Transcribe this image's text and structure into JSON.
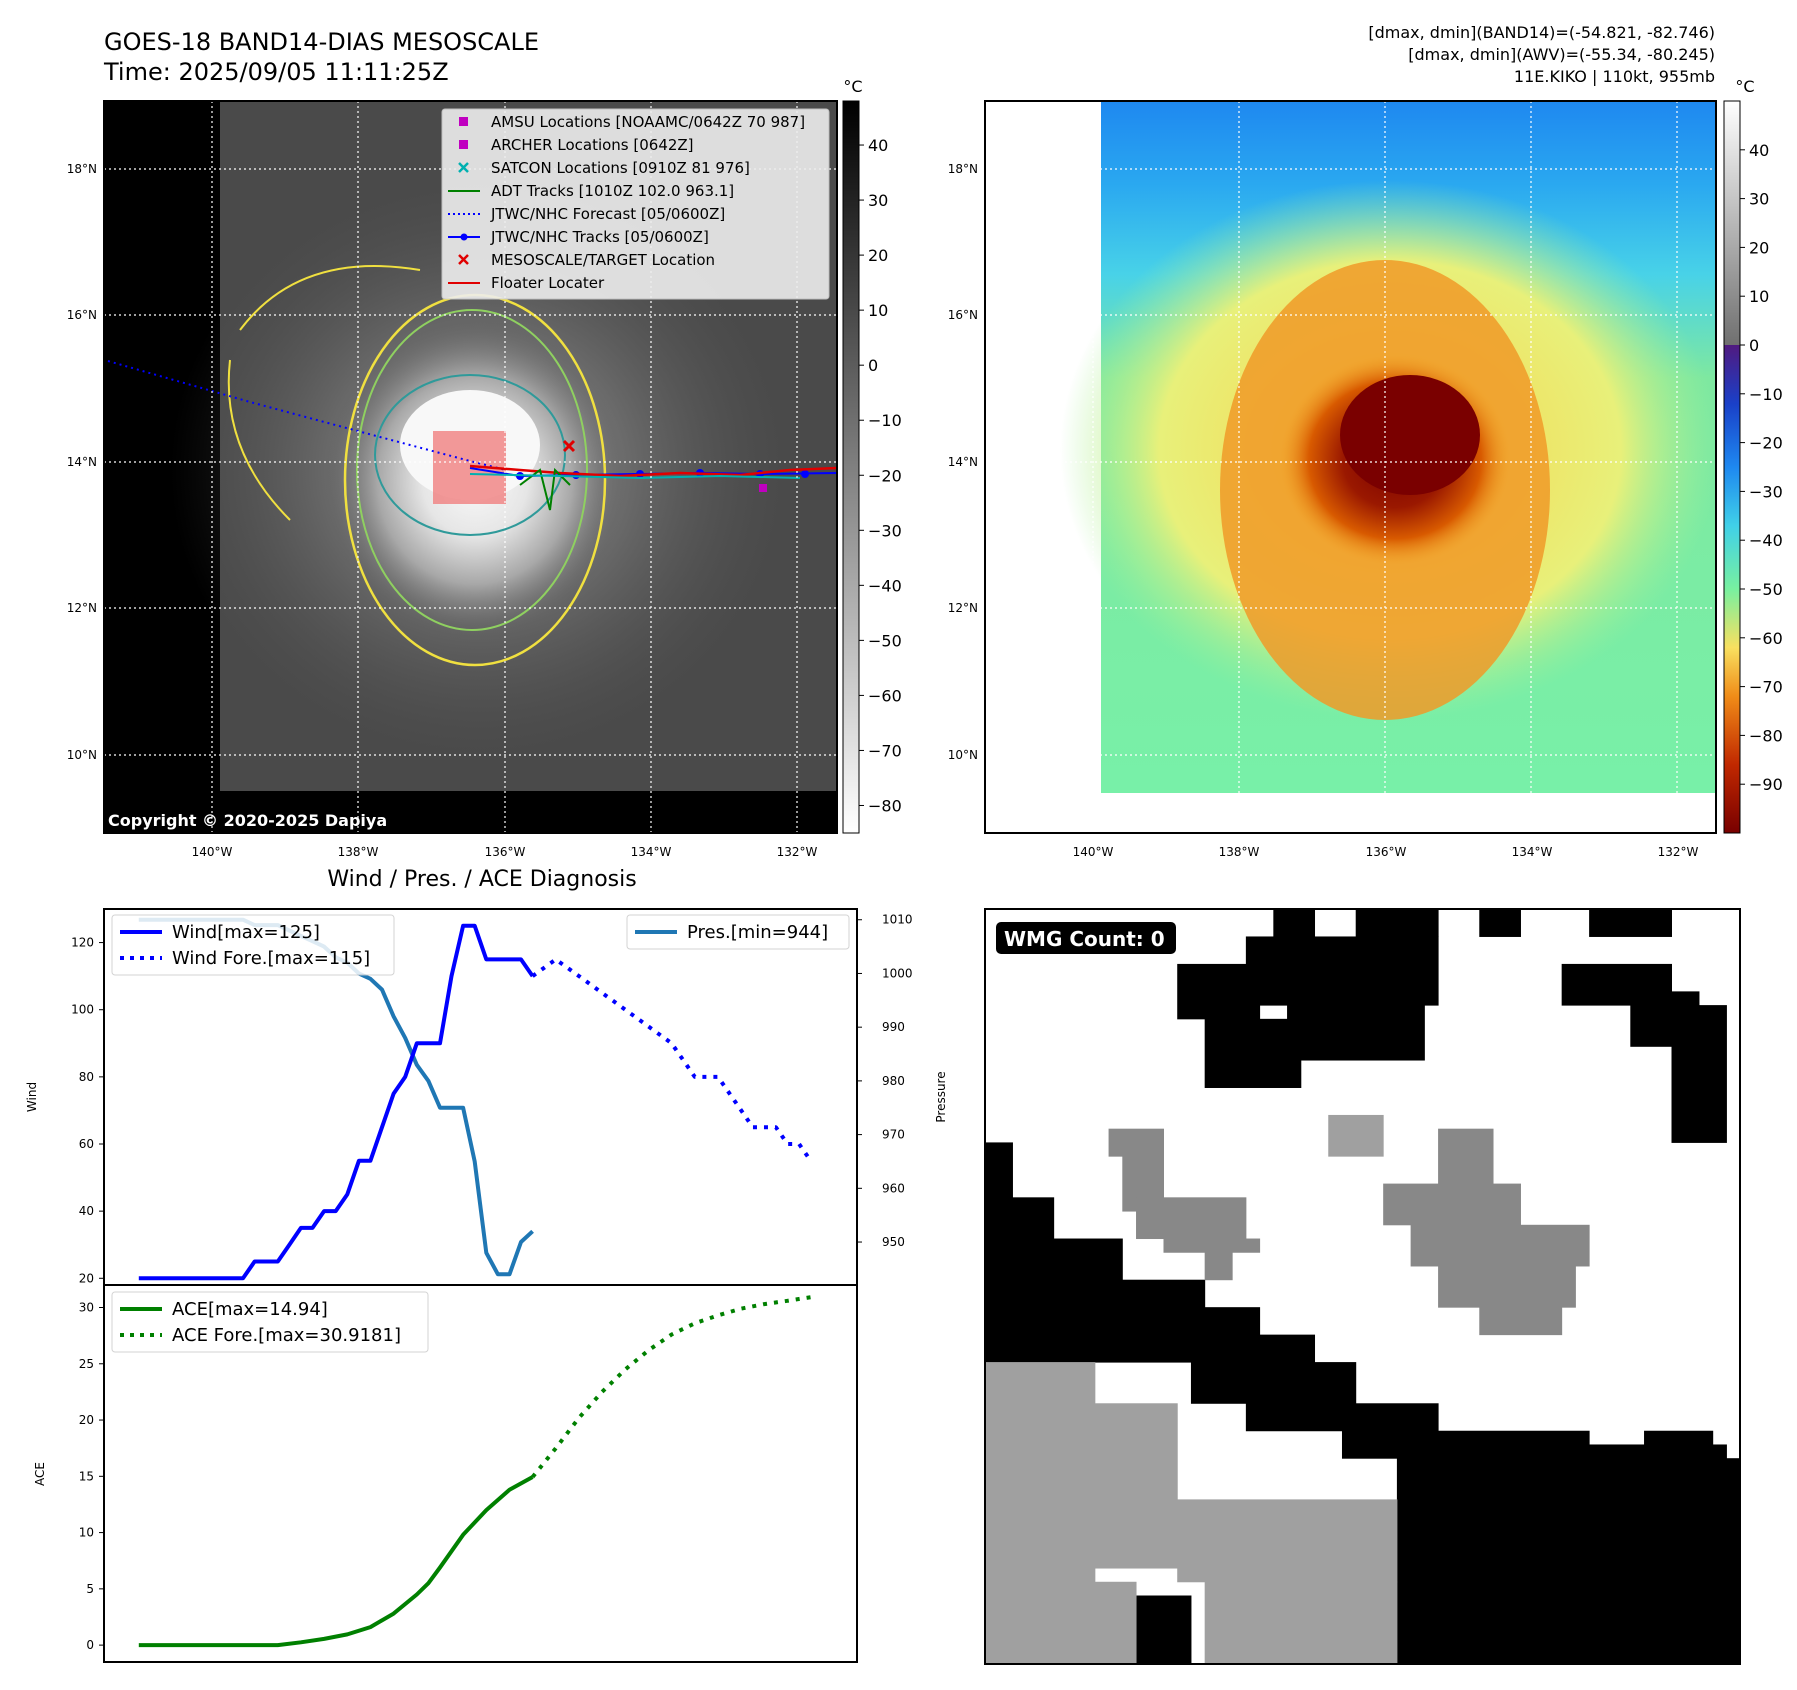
{
  "header": {
    "title": "GOES-18 BAND14-DIAS MESOSCALE",
    "time": "Time: 2025/09/05 11:11:25Z",
    "stats_band14": "[dmax, dmin](BAND14)=(-54.821, -82.746)",
    "stats_awv": "[dmax, dmin](AWV)=(-55.34, -80.245)",
    "storm": "11E.KIKO | 110kt, 955mb"
  },
  "copyright": "Copyright © 2020-2025 Dapiya",
  "map": {
    "lon_labels": [
      "140°W",
      "138°W",
      "136°W",
      "134°W",
      "132°W"
    ],
    "lat_labels": [
      "18°N",
      "16°N",
      "14°N",
      "12°N",
      "10°N"
    ],
    "colorbar_unit": "°C",
    "ir_ticks": [
      "40",
      "30",
      "20",
      "10",
      "0",
      "−10",
      "−20",
      "−30",
      "−40",
      "−50",
      "−60",
      "−70",
      "−80"
    ],
    "awv_ticks": [
      "40",
      "30",
      "20",
      "10",
      "0",
      "−10",
      "−20",
      "−30",
      "−40",
      "−50",
      "−60",
      "−70",
      "−80",
      "−90"
    ],
    "legend": [
      {
        "label": "AMSU Locations [NOAAMC/0642Z 70 987]",
        "marker": "square",
        "color": "#c000c0"
      },
      {
        "label": "ARCHER Locations [0642Z]",
        "marker": "square",
        "color": "#c000c0"
      },
      {
        "label": "SATCON Locations [0910Z 81 976]",
        "marker": "x",
        "color": "#00b0b0"
      },
      {
        "label": "ADT Tracks [1010Z 102.0 963.1]",
        "marker": "line",
        "color": "#008000"
      },
      {
        "label": "JTWC/NHC Forecast [05/0600Z]",
        "marker": "dotted",
        "color": "#0000ff"
      },
      {
        "label": "JTWC/NHC Tracks [05/0600Z]",
        "marker": "line-dot",
        "color": "#0000ff"
      },
      {
        "label": "MESOSCALE/TARGET Location",
        "marker": "x",
        "color": "#e00000"
      },
      {
        "label": "Floater Locater",
        "marker": "line",
        "color": "#e00000"
      }
    ]
  },
  "diagnosis": {
    "title": "Wind / Pres. / ACE Diagnosis",
    "wind_ylabel": "Wind",
    "pres_ylabel": "Pressure",
    "ace_ylabel": "ACE",
    "wind_legend": [
      "Wind[max=125]",
      "Wind Fore.[max=115]"
    ],
    "pres_legend": "Pres.[min=944]",
    "ace_legend": [
      "ACE[max=14.94]",
      "ACE Fore.[max=30.9181]"
    ],
    "wmg_label": "WMG Count: 0"
  },
  "chart_data": [
    {
      "type": "line",
      "title": "Wind / Pres. / ACE Diagnosis",
      "ylabel": "Wind",
      "ylim": [
        18,
        130
      ],
      "yticks": [
        20,
        40,
        60,
        80,
        100,
        120
      ],
      "x": [
        0,
        1,
        2,
        3,
        4,
        5,
        6,
        7,
        8,
        9,
        10,
        11,
        12,
        13,
        14,
        15,
        16,
        17,
        18,
        19,
        20,
        21,
        22,
        23,
        24,
        25,
        26,
        27,
        28,
        29,
        30,
        31,
        32,
        33,
        34
      ],
      "series": [
        {
          "name": "Wind[max=125]",
          "color": "#0000ff",
          "style": "solid",
          "values": [
            20,
            20,
            20,
            20,
            20,
            20,
            20,
            20,
            20,
            20,
            25,
            25,
            25,
            30,
            35,
            35,
            40,
            40,
            45,
            55,
            55,
            65,
            75,
            80,
            90,
            90,
            90,
            110,
            125,
            125,
            115,
            115,
            115,
            115,
            110
          ]
        }
      ]
    },
    {
      "type": "line",
      "ylabel": "Wind",
      "x": [
        34,
        36,
        38,
        40,
        42,
        44,
        46,
        47,
        48,
        49,
        50,
        51,
        52,
        53,
        54,
        55,
        56,
        57,
        58
      ],
      "series": [
        {
          "name": "Wind Fore.[max=115]",
          "color": "#0000ff",
          "style": "dotted",
          "values": [
            110,
            115,
            110,
            105,
            100,
            95,
            90,
            85,
            80,
            80,
            80,
            75,
            70,
            65,
            65,
            65,
            60,
            60,
            55
          ]
        }
      ]
    },
    {
      "type": "line",
      "ylabel": "Pressure",
      "ylim": [
        942,
        1012
      ],
      "yticks": [
        950,
        960,
        970,
        980,
        990,
        1000,
        1010
      ],
      "x": [
        0,
        1,
        2,
        3,
        4,
        5,
        6,
        7,
        8,
        9,
        10,
        11,
        12,
        13,
        14,
        15,
        16,
        17,
        18,
        19,
        20,
        21,
        22,
        23,
        24,
        25,
        26,
        27,
        28,
        29,
        30,
        31,
        32,
        33,
        34
      ],
      "series": [
        {
          "name": "Pres.[min=944]",
          "color": "#1f77b4",
          "style": "solid",
          "values": [
            1010,
            1010,
            1010,
            1010,
            1010,
            1010,
            1010,
            1010,
            1010,
            1010,
            1009,
            1009,
            1009,
            1008,
            1007,
            1006,
            1005,
            1003,
            1002,
            1000,
            999,
            997,
            992,
            988,
            983,
            980,
            975,
            975,
            975,
            965,
            948,
            944,
            944,
            950,
            952
          ]
        }
      ]
    },
    {
      "type": "line",
      "ylabel": "ACE",
      "ylim": [
        -1.5,
        32
      ],
      "yticks": [
        0,
        5,
        10,
        15,
        20,
        25,
        30
      ],
      "x": [
        0,
        2,
        4,
        6,
        8,
        10,
        12,
        14,
        16,
        18,
        20,
        22,
        24,
        25,
        26,
        28,
        30,
        32,
        34
      ],
      "series": [
        {
          "name": "ACE[max=14.94]",
          "color": "#008000",
          "style": "solid",
          "values": [
            0,
            0,
            0,
            0,
            0,
            0,
            0,
            0.25,
            0.55,
            0.95,
            1.6,
            2.8,
            4.5,
            5.5,
            6.9,
            9.8,
            12,
            13.8,
            14.94
          ]
        }
      ]
    },
    {
      "type": "line",
      "ylabel": "ACE",
      "x": [
        34,
        36,
        38,
        40,
        42,
        44,
        46,
        48,
        50,
        52,
        54,
        56,
        58
      ],
      "series": [
        {
          "name": "ACE Fore.[max=30.9181]",
          "color": "#008000",
          "style": "dotted",
          "values": [
            14.94,
            17.5,
            20.2,
            22.5,
            24.5,
            26.2,
            27.6,
            28.6,
            29.3,
            29.9,
            30.3,
            30.6,
            30.9181
          ]
        }
      ]
    }
  ]
}
